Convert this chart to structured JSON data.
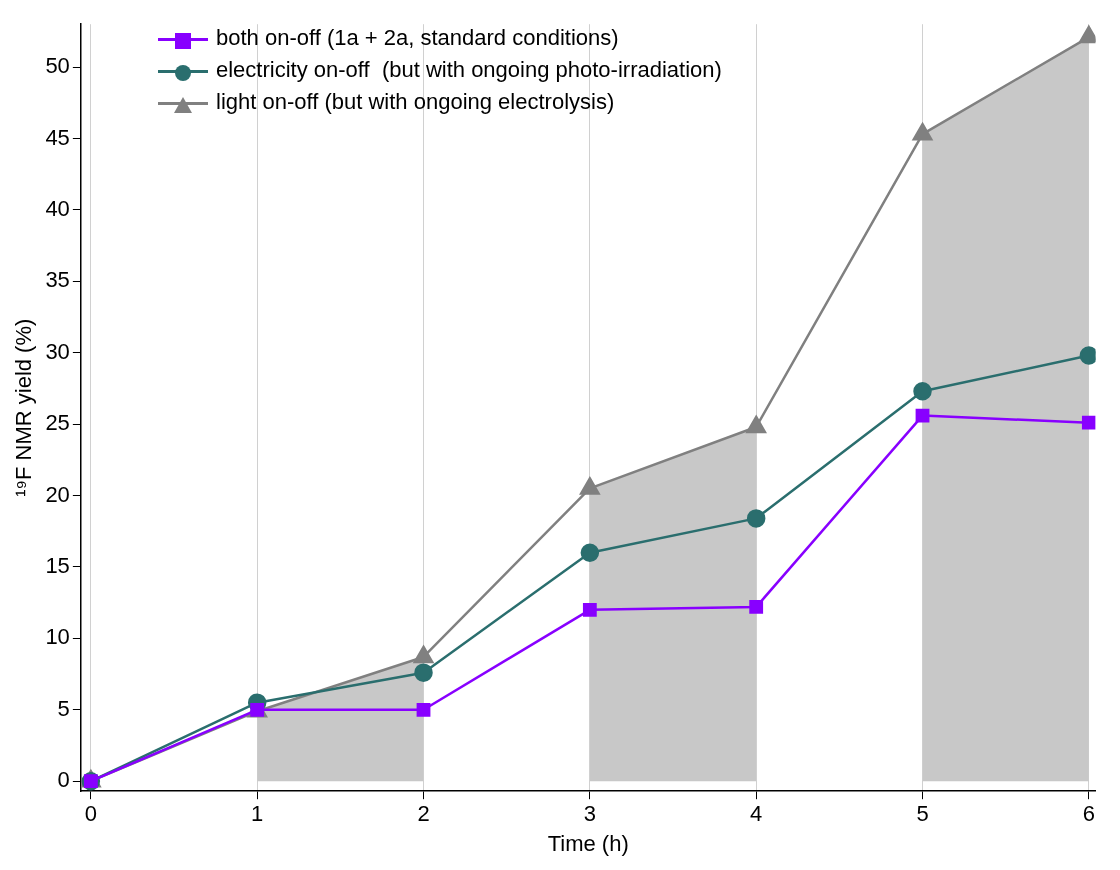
{
  "chart_data": {
    "type": "line",
    "xlabel": "Time (h)",
    "ylabel": "¹⁹F NMR yield (%)",
    "x": [
      0,
      1,
      2,
      3,
      4,
      5,
      6
    ],
    "series": [
      {
        "type": "area",
        "color": "#c8c8c8",
        "x": [
          1,
          2
        ],
        "values": [
          4.9,
          8.7
        ]
      },
      {
        "type": "area",
        "color": "#c8c8c8",
        "x": [
          3,
          4
        ],
        "values": [
          20.5,
          24.8
        ]
      },
      {
        "type": "area",
        "color": "#c8c8c8",
        "x": [
          5,
          6
        ],
        "values": [
          45.3,
          52.1
        ]
      },
      {
        "name": "both on-off (1a + 2a, standard conditions)",
        "color": "#8800ff",
        "marker": "square",
        "values": [
          0,
          5.0,
          5.0,
          12.0,
          12.2,
          25.6,
          25.1
        ]
      },
      {
        "name": "electricity on-off  (but with ongoing photo-irradiation)",
        "color": "#2a6e6e",
        "marker": "circle",
        "values": [
          0,
          5.5,
          7.6,
          16.0,
          18.4,
          27.3,
          29.8
        ]
      },
      {
        "name": "light on-off (but with ongoing electrolysis)",
        "color": "#808080",
        "marker": "triangle",
        "values": [
          0,
          4.9,
          8.7,
          20.5,
          24.8,
          45.3,
          52.1
        ]
      }
    ],
    "xlim": [
      -0.06,
      6.04
    ],
    "xticks": [
      0,
      1,
      2,
      3,
      4,
      5,
      6
    ],
    "ylim": [
      -0.7,
      53
    ],
    "yticks": [
      0,
      5,
      10,
      15,
      20,
      25,
      30,
      35,
      40,
      45,
      50
    ],
    "grid": "x",
    "legend": "top left",
    "line_style": "solid"
  }
}
